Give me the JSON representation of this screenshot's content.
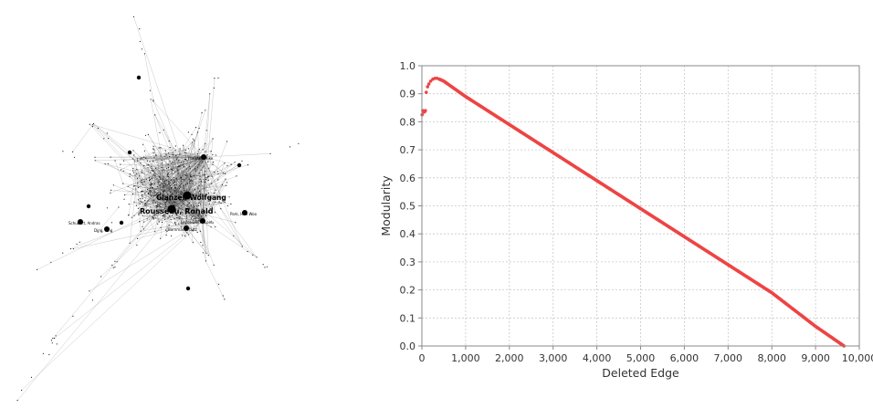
{
  "network": {
    "node_labels": [
      "Glanzel, Wolfgang",
      "Rousseau, Ronald",
      "Leydesdorff, Loet",
      "Park, Han Woo",
      "Bornmann, Lutz",
      "Thelwall, Mike",
      "Schubert, Andras",
      "Ding, Ying"
    ]
  },
  "chart_data": {
    "type": "scatter",
    "title": "",
    "xlabel": "Deleted Edge",
    "ylabel": "Modularity",
    "xlim": [
      0,
      10000
    ],
    "ylim": [
      0.0,
      1.0
    ],
    "x_ticks": [
      "0",
      "1,000",
      "2,000",
      "3,000",
      "4,000",
      "5,000",
      "6,000",
      "7,000",
      "8,000",
      "9,000",
      "10,000"
    ],
    "y_ticks": [
      "0.0",
      "0.1",
      "0.2",
      "0.3",
      "0.4",
      "0.5",
      "0.6",
      "0.7",
      "0.8",
      "0.9",
      "1.0"
    ],
    "grid": true,
    "marker_color": "#ee4444",
    "series": [
      {
        "points": [
          [
            5,
            0.825
          ],
          [
            20,
            0.84
          ],
          [
            40,
            0.835
          ],
          [
            60,
            0.835
          ],
          [
            80,
            0.84
          ],
          [
            100,
            0.905
          ],
          [
            130,
            0.925
          ],
          [
            160,
            0.935
          ],
          [
            200,
            0.945
          ],
          [
            250,
            0.952
          ],
          [
            300,
            0.955
          ],
          [
            350,
            0.955
          ],
          [
            400,
            0.952
          ],
          [
            500,
            0.945
          ],
          [
            1000,
            0.89
          ],
          [
            2000,
            0.79
          ],
          [
            3000,
            0.69
          ],
          [
            4000,
            0.59
          ],
          [
            5000,
            0.49
          ],
          [
            6000,
            0.39
          ],
          [
            7000,
            0.29
          ],
          [
            8000,
            0.19
          ],
          [
            9000,
            0.07
          ],
          [
            9650,
            0.0
          ]
        ]
      }
    ]
  }
}
